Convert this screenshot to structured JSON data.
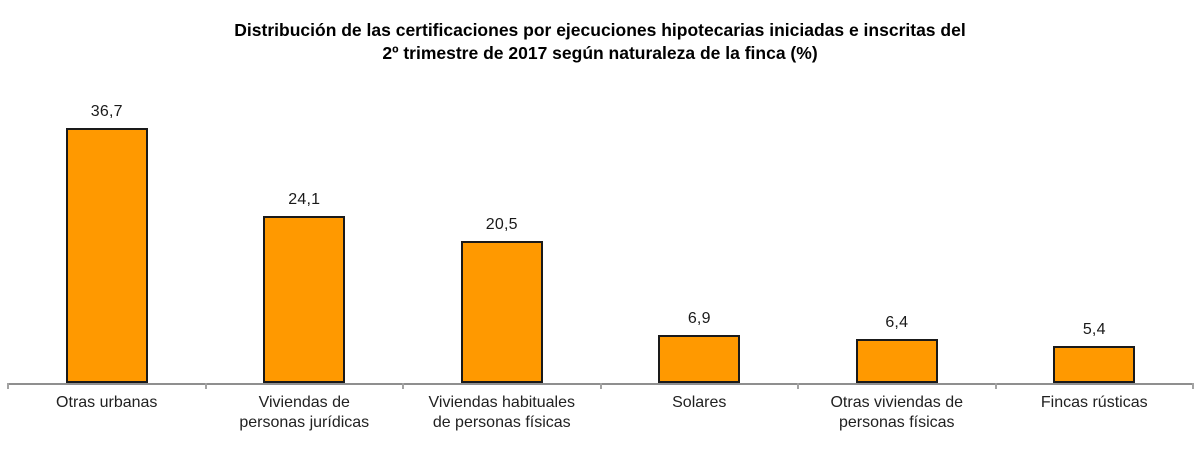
{
  "title": "Distribución de las certificaciones por ejecuciones hipotecarias iniciadas e inscritas del\n2º trimestre de 2017 según naturaleza de la finca (%)",
  "chart_data": {
    "type": "bar",
    "title": "Distribución de las certificaciones por ejecuciones hipotecarias iniciadas e inscritas del 2º trimestre de 2017 según naturaleza de la finca (%)",
    "categories": [
      "Otras urbanas",
      "Viviendas de personas jurídicas",
      "Viviendas habituales de personas físicas",
      "Solares",
      "Otras viviendas de personas físicas",
      "Fincas rústicas"
    ],
    "categories_display": [
      "Otras urbanas",
      "Viviendas de\npersonas jurídicas",
      "Viviendas habituales\nde personas físicas",
      "Solares",
      "Otras viviendas de\npersonas físicas",
      "Fincas rústicas"
    ],
    "values": [
      36.7,
      24.1,
      20.5,
      6.9,
      6.4,
      5.4
    ],
    "value_labels": [
      "36,7",
      "24,1",
      "20,5",
      "6,9",
      "6,4",
      "5,4"
    ],
    "xlabel": "",
    "ylabel": "",
    "ylim": [
      0,
      40
    ],
    "grid": false,
    "legend": false,
    "bar_color": "#FF9900",
    "bar_border_color": "#1a1a1a",
    "axis_color": "#8f8f8f",
    "tick_color": "#a3a3a3"
  }
}
